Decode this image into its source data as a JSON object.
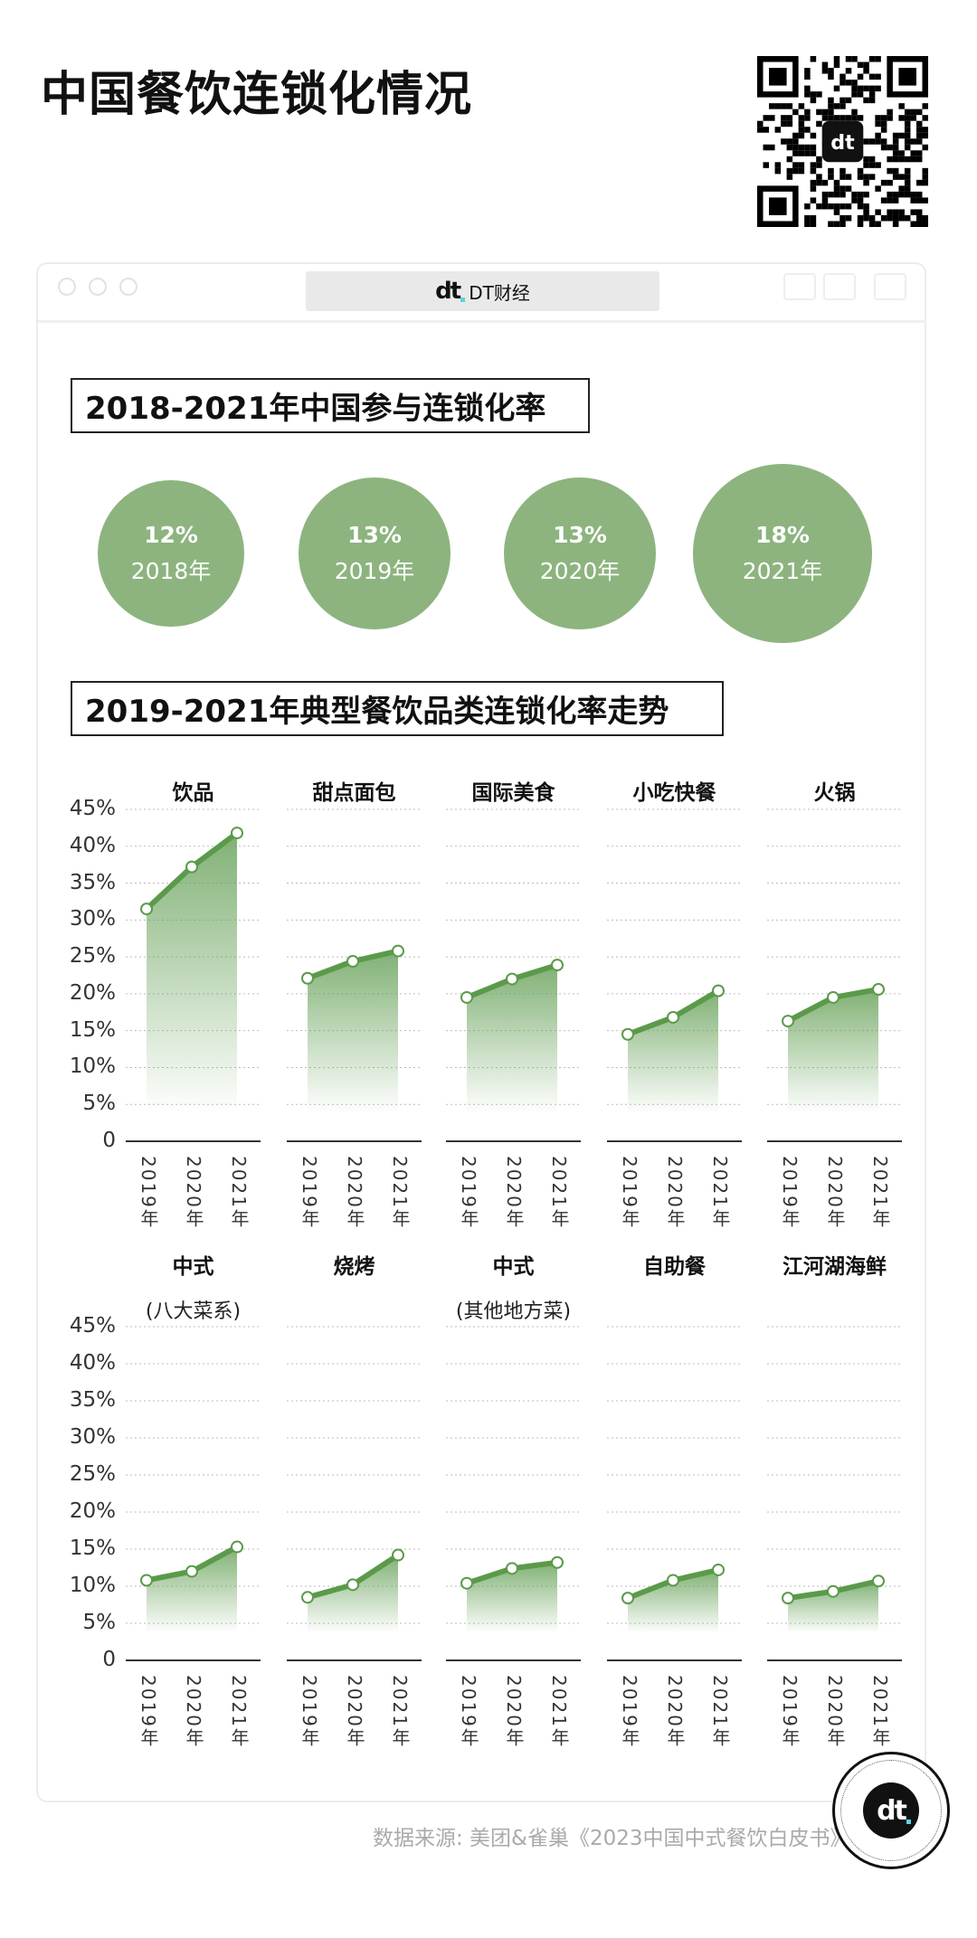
{
  "header": {
    "title": "中国餐饮连锁化情况"
  },
  "window": {
    "tab_label": "DT财经",
    "logo": "dt"
  },
  "section1": {
    "title": "2018-2021年中国参与连锁化率",
    "circles": [
      {
        "value": "12%",
        "year": "2018年"
      },
      {
        "value": "13%",
        "year": "2019年"
      },
      {
        "value": "13%",
        "year": "2020年"
      },
      {
        "value": "18%",
        "year": "2021年"
      }
    ]
  },
  "section2": {
    "title": "2019-2021年典型餐饮品类连锁化率走势"
  },
  "colors": {
    "circle": "#8db47f",
    "line": "#5b9a4a",
    "fill": "#6aa35c"
  },
  "chart_data": {
    "type": "area",
    "x": [
      "2019年",
      "2020年",
      "2021年"
    ],
    "yticks": [
      "45%",
      "40%",
      "35%",
      "30%",
      "25%",
      "20%",
      "15%",
      "10%",
      "5%",
      "0"
    ],
    "ylim": [
      0,
      45
    ],
    "grid": true,
    "rows": [
      [
        {
          "name": "饮品",
          "sub": "",
          "values": [
            31.5,
            37.2,
            41.8
          ]
        },
        {
          "name": "甜点面包",
          "sub": "",
          "values": [
            22.1,
            24.4,
            25.8
          ]
        },
        {
          "name": "国际美食",
          "sub": "",
          "values": [
            19.5,
            22.0,
            23.9
          ]
        },
        {
          "name": "小吃快餐",
          "sub": "",
          "values": [
            14.5,
            16.8,
            20.4
          ]
        },
        {
          "name": "火锅",
          "sub": "",
          "values": [
            16.3,
            19.5,
            20.6
          ]
        }
      ],
      [
        {
          "name": "中式",
          "sub": "(八大菜系)",
          "values": [
            10.8,
            12.0,
            15.3
          ]
        },
        {
          "name": "烧烤",
          "sub": "",
          "values": [
            8.5,
            10.2,
            14.2
          ]
        },
        {
          "name": "中式",
          "sub": "(其他地方菜)",
          "values": [
            10.4,
            12.4,
            13.2
          ]
        },
        {
          "name": "自助餐",
          "sub": "",
          "values": [
            8.4,
            10.8,
            12.2
          ]
        },
        {
          "name": "江河湖海鲜",
          "sub": "",
          "values": [
            8.4,
            9.3,
            10.7
          ]
        }
      ]
    ]
  },
  "footer": {
    "source": "数据来源: 美团&雀巢《2023中国中式餐饮白皮书》",
    "badge_logo": "dt"
  }
}
